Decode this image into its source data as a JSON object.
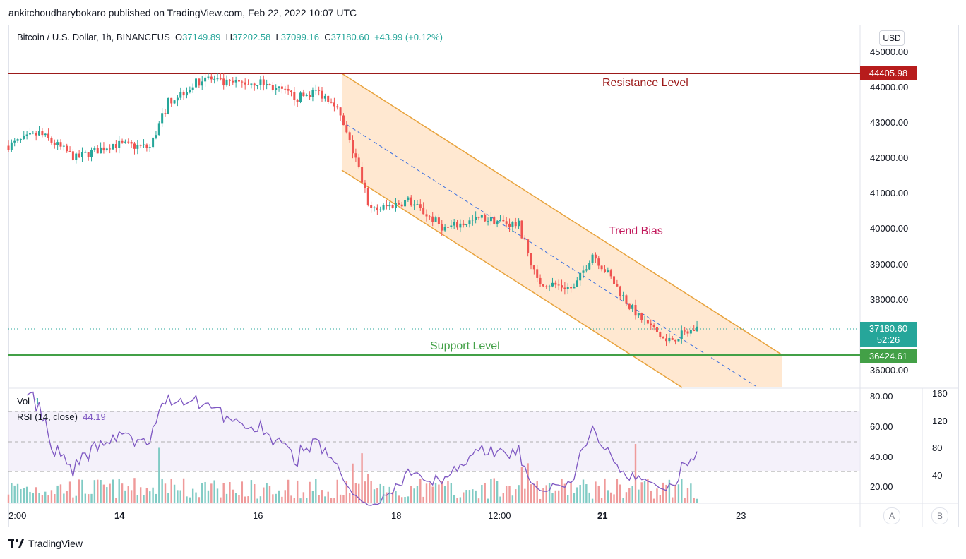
{
  "header": {
    "published_line": "ankitchoudharybokaro published on TradingView.com, Feb 22, 2022 10:07 UTC"
  },
  "legend": {
    "symbol": "Bitcoin / U.S. Dollar, 1h, BINANCEUS",
    "o_key": "O",
    "o_val": "37149.89",
    "h_key": "H",
    "h_val": "37202.58",
    "l_key": "L",
    "l_val": "37099.16",
    "c_key": "C",
    "c_val": "37180.60",
    "change": "+43.99 (+0.12%)"
  },
  "currency_button": "USD",
  "price_axis": [
    "45000.00",
    "44000.00",
    "43000.00",
    "42000.00",
    "41000.00",
    "40000.00",
    "39000.00",
    "38000.00",
    "36000.00"
  ],
  "price_tags": {
    "resistance": "44405.98",
    "last": "37180.60",
    "countdown": "52:26",
    "support": "36424.61"
  },
  "annotations": {
    "resistance": "Resistance Level",
    "trend": "Trend Bias",
    "support": "Support Level"
  },
  "indicators": {
    "vol_label": "Vol",
    "vol_value": "1",
    "rsi_label": "RSI (14, close)",
    "rsi_value": "44.19"
  },
  "rsi_axis": [
    "80.00",
    "60.00",
    "40.00",
    "20.00"
  ],
  "vol_axis": [
    "160",
    "120",
    "80",
    "40"
  ],
  "time_axis": [
    "2:00",
    "14",
    "16",
    "18",
    "12:00",
    "21",
    "23"
  ],
  "axis_buttons": {
    "a": "A",
    "b": "B"
  },
  "footer": {
    "brand": "TradingView"
  },
  "colors": {
    "up": "#26a69a",
    "down": "#ef5350",
    "resistance": "#9c1a1a",
    "support": "#43a047",
    "channel": "#f5a623",
    "rsi": "#7e57c2"
  },
  "chart_data": {
    "type": "candlestick",
    "symbol": "BTCUSD",
    "interval": "1h",
    "y_range": [
      35600,
      45300
    ],
    "x_dates": [
      "Feb 13",
      "Feb 14",
      "Feb 16",
      "Feb 18",
      "Feb 19 12:00",
      "Feb 21",
      "Feb 23"
    ],
    "close_path": [
      {
        "t": "Feb 13 02:00",
        "close": 42350
      },
      {
        "t": "Feb 13 12:00",
        "close": 42700
      },
      {
        "t": "Feb 14 00:00",
        "close": 42000
      },
      {
        "t": "Feb 14 12:00",
        "close": 42400
      },
      {
        "t": "Feb 15 00:00",
        "close": 42300
      },
      {
        "t": "Feb 15 06:00",
        "close": 43600
      },
      {
        "t": "Feb 15 18:00",
        "close": 44300
      },
      {
        "t": "Feb 16 00:00",
        "close": 44100
      },
      {
        "t": "Feb 16 12:00",
        "close": 44150
      },
      {
        "t": "Feb 17 00:00",
        "close": 43700
      },
      {
        "t": "Feb 17 06:00",
        "close": 43900
      },
      {
        "t": "Feb 17 12:00",
        "close": 43600
      },
      {
        "t": "Feb 17 18:00",
        "close": 42200
      },
      {
        "t": "Feb 18 00:00",
        "close": 40500
      },
      {
        "t": "Feb 18 12:00",
        "close": 40800
      },
      {
        "t": "Feb 19 00:00",
        "close": 40000
      },
      {
        "t": "Feb 19 12:00",
        "close": 40300
      },
      {
        "t": "Feb 20 00:00",
        "close": 40100
      },
      {
        "t": "Feb 20 06:00",
        "close": 38500
      },
      {
        "t": "Feb 20 18:00",
        "close": 38300
      },
      {
        "t": "Feb 21 00:00",
        "close": 39300
      },
      {
        "t": "Feb 21 06:00",
        "close": 38600
      },
      {
        "t": "Feb 21 12:00",
        "close": 37800
      },
      {
        "t": "Feb 22 00:00",
        "close": 36800
      },
      {
        "t": "Feb 22 10:00",
        "close": 37180.6
      }
    ],
    "levels": [
      {
        "name": "Resistance Level",
        "price": 44405.98
      },
      {
        "name": "Support Level",
        "price": 36424.61
      }
    ],
    "channel": {
      "label": "Trend Bias",
      "upper": [
        {
          "t": "Feb 17 06:00",
          "price": 44400
        },
        {
          "t": "Feb 23 06:00",
          "price": 36400
        }
      ],
      "lower": [
        {
          "t": "Feb 17 06:00",
          "price": 41700
        },
        {
          "t": "Feb 22 12:00",
          "price": 35600
        }
      ]
    },
    "rsi_levels": [
      70,
      50,
      30
    ],
    "last_rsi": 44.19,
    "last_close": 37180.6
  }
}
